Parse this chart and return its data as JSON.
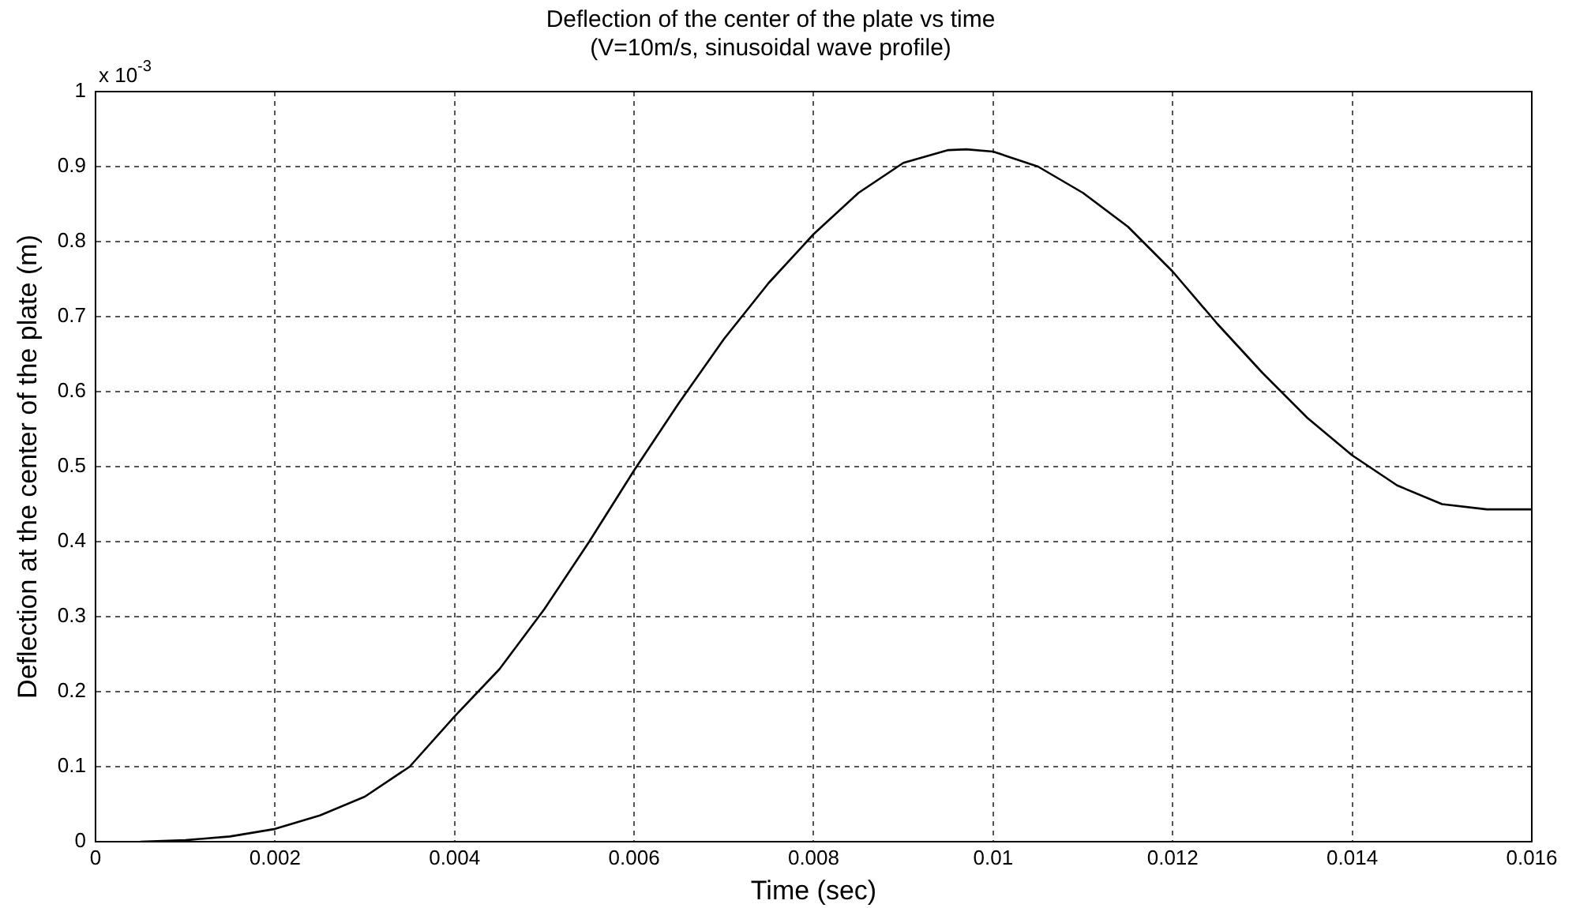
{
  "chart_data": {
    "type": "line",
    "title": "Deflection of the center of the plate vs time",
    "subtitle": "(V=10m/s, sinusoidal wave profile)",
    "xlabel": "Time (sec)",
    "ylabel": "Deflection at the center of the plate (m)",
    "annotations": [
      "x 10$^{-3}$"
    ],
    "x": [
      0.0005,
      0.001,
      0.0015,
      0.002,
      0.0025,
      0.003,
      0.0035,
      0.004,
      0.0045,
      0.005,
      0.0055,
      0.006,
      0.0065,
      0.007,
      0.0075,
      0.008,
      0.0085,
      0.009,
      0.0095,
      0.0097,
      0.01,
      0.0105,
      0.011,
      0.0115,
      0.012,
      0.0125,
      0.013,
      0.0135,
      0.014,
      0.0145,
      0.015,
      0.0155,
      0.016
    ],
    "series": [
      {
        "color": "#000000",
        "values": [
          0,
          0.002,
          0.007,
          0.017,
          0.035,
          0.06,
          0.1,
          0.167,
          0.23,
          0.31,
          0.4,
          0.495,
          0.585,
          0.67,
          0.745,
          0.81,
          0.865,
          0.905,
          0.922,
          0.923,
          0.92,
          0.9,
          0.865,
          0.82,
          0.76,
          0.69,
          0.625,
          0.565,
          0.515,
          0.475,
          0.45,
          0.443,
          0.443
        ]
      }
    ],
    "xlim": [
      0,
      0.016
    ],
    "xticks": [
      0,
      0.002,
      0.004,
      0.006,
      0.008,
      0.01,
      0.012,
      0.014,
      0.016
    ],
    "ylim": [
      0,
      1
    ],
    "yticks": [
      0,
      0.1,
      0.2,
      0.3,
      0.4,
      0.5,
      0.6,
      0.7,
      0.8,
      0.9,
      1
    ],
    "grid": true,
    "legend": false,
    "marker": "none",
    "line_style": "solid"
  }
}
